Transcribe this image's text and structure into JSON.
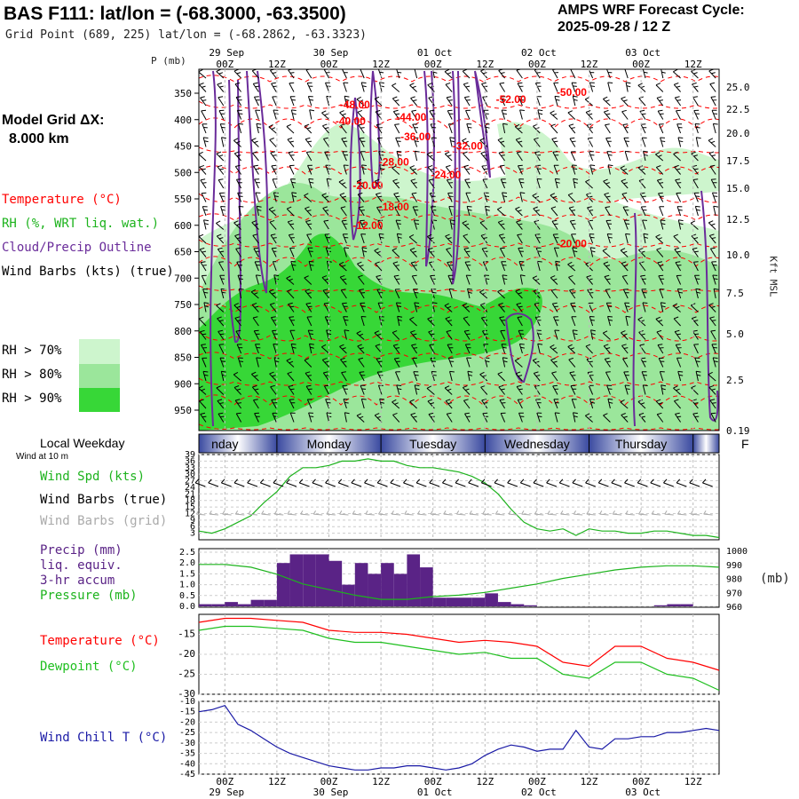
{
  "header": {
    "title": "BAS F111:  lat/lon = (-68.3000, -63.3500)",
    "grid_point": "Grid Point (689, 225) lat/lon = (-68.2862, -63.3323)",
    "forecast_title": "AMPS WRF Forecast Cycle:",
    "forecast_cycle": "2025-09-28 / 12  Z"
  },
  "colors": {
    "rh70": "#cdf5cd",
    "rh80": "#9be69b",
    "rh90": "#37d737",
    "temperature": "#ff0000",
    "cloud": "#6a2c9a",
    "wind_barbs": "#000000",
    "wind_grid": "#aaaaaa",
    "precip": "#5a2386",
    "pressure": "#1db31d",
    "dewpoint": "#1fbf1f",
    "windchill": "#1a1aa6",
    "wind_speed": "#1db31d"
  },
  "side": {
    "model_grid_label": "Model Grid ΔX:",
    "model_grid_value": "8.000 km",
    "legend_temperature": "Temperature (°C)",
    "legend_rh": "RH (%, WRT liq. wat.)",
    "legend_cloud": "Cloud/Precip Outline",
    "legend_wind": "Wind Barbs (kts) (true)",
    "rh70_label": "RH > 70%",
    "rh80_label": "RH > 80%",
    "rh90_label": "RH > 90%",
    "local_weekday": "Local Weekday",
    "wind_at_10m": "Wind at 10 m",
    "wind_spd_label": "Wind Spd (kts)",
    "wind_barbs_true": "Wind Barbs (true)",
    "wind_barbs_grid": "Wind Barbs (grid)",
    "precip_l1": "Precip (mm)",
    "precip_l2": "liq. equiv.",
    "precip_l3": "3-hr accum",
    "pressure_label": "Pressure (mb)",
    "temp_label": "Temperature (°C)",
    "dewpoint_label": "Dewpoint (°C)",
    "windchill_label": "Wind Chill T (°C)",
    "mb_unit": "(mb)",
    "p_axis_title": "P (mb)",
    "kft_axis_title": "Kft MSL"
  },
  "time_axis": {
    "hour_labels": [
      "00Z",
      "12Z",
      "00Z",
      "12Z",
      "00Z",
      "12Z",
      "00Z",
      "12Z",
      "00Z",
      "12Z"
    ],
    "date_labels": [
      "29 Sep",
      "30 Sep",
      "01 Oct",
      "02 Oct",
      "03 Oct"
    ]
  },
  "weekdays": [
    "nday",
    "Monday",
    "Tuesday",
    "Wednesday",
    "Thursday",
    "F"
  ],
  "chart_data": [
    {
      "type": "heatmap",
      "name": "cross-section",
      "x_range_hours": [
        0,
        120
      ],
      "pressure_ticks": [
        "350",
        "400",
        "450",
        "500",
        "550",
        "600",
        "650",
        "700",
        "750",
        "800",
        "850",
        "900",
        "950"
      ],
      "height_ticks": [
        "25.0",
        "22.5",
        "20.0",
        "17.5",
        "15.0",
        "12.5",
        "10.0",
        "7.5",
        "5.0",
        "2.5",
        "0.19"
      ],
      "temperature_labels": [
        {
          "text": "-50.00",
          "t": 86,
          "p": 348
        },
        {
          "text": "-52.00",
          "t": 72,
          "p": 362
        },
        {
          "text": "-48.00",
          "t": 36,
          "p": 372
        },
        {
          "text": "-44.00",
          "t": 49,
          "p": 395
        },
        {
          "text": "-40.00",
          "t": 35,
          "p": 403
        },
        {
          "text": "-36.00",
          "t": 50,
          "p": 432
        },
        {
          "text": "-32.00",
          "t": 62,
          "p": 450
        },
        {
          "text": "-28.00",
          "t": 45,
          "p": 480
        },
        {
          "text": "-24.00",
          "t": 57,
          "p": 505
        },
        {
          "text": "-20.00",
          "t": 39,
          "p": 525
        },
        {
          "text": "-18.00",
          "t": 45,
          "p": 565
        },
        {
          "text": "-12.00",
          "t": 39,
          "p": 600
        },
        {
          "text": "-20.00",
          "t": 86,
          "p": 635
        }
      ]
    },
    {
      "type": "line",
      "name": "wind speed",
      "ylabel": "Wind Spd (kts)",
      "y_ticks": [
        "39",
        "36",
        "33",
        "30",
        "27",
        "24",
        "21",
        "18",
        "15",
        "12",
        "9",
        "6",
        "3"
      ],
      "ylim": [
        0,
        39
      ],
      "x": [
        0,
        3,
        6,
        9,
        12,
        15,
        18,
        21,
        24,
        27,
        30,
        33,
        36,
        39,
        42,
        45,
        48,
        51,
        54,
        57,
        60,
        63,
        66,
        69,
        72,
        75,
        78,
        81,
        84,
        87,
        90,
        93,
        96,
        99,
        102,
        105,
        108,
        111,
        114,
        117,
        120
      ],
      "values": [
        4,
        3,
        5,
        8,
        11,
        17,
        22,
        29,
        33,
        33,
        34,
        36,
        36,
        37,
        36,
        36,
        34,
        33,
        33,
        32,
        31,
        29,
        26,
        21,
        14,
        8,
        5,
        4,
        5,
        2,
        5,
        4,
        4,
        3,
        3,
        4,
        4,
        3,
        2,
        2,
        1
      ]
    },
    {
      "type": "bar",
      "name": "precip 3-hr accum",
      "ylabel": "Precip (mm)",
      "y_ticks": [
        "2.5",
        "2.0",
        "1.5",
        "1.0",
        "0.5",
        "0.0"
      ],
      "ylim": [
        0,
        2.5
      ],
      "bin_start_hours": [
        0,
        3,
        6,
        9,
        12,
        15,
        18,
        21,
        24,
        27,
        30,
        33,
        36,
        39,
        42,
        45,
        48,
        51,
        54,
        57,
        60,
        63,
        66,
        69,
        72,
        75,
        78,
        81,
        84,
        87,
        90,
        93,
        96,
        99,
        102,
        105,
        108,
        111,
        114,
        117
      ],
      "values": [
        0.1,
        0.1,
        0.2,
        0.1,
        0.3,
        0.3,
        2.0,
        2.4,
        2.4,
        2.4,
        2.1,
        1.0,
        2.0,
        1.5,
        2.0,
        1.5,
        2.4,
        1.8,
        0.4,
        0.4,
        0.4,
        0.4,
        0.6,
        0.2,
        0.1,
        0.05,
        0,
        0,
        0,
        0,
        0,
        0,
        0,
        0,
        0,
        0.05,
        0.1,
        0.1,
        0,
        0
      ]
    },
    {
      "type": "line",
      "name": "pressure",
      "ylabel": "Pressure (mb)",
      "y_ticks": [
        "1000",
        "990",
        "980",
        "970",
        "960"
      ],
      "ylim": [
        960,
        1000
      ],
      "x": [
        0,
        6,
        12,
        18,
        24,
        30,
        36,
        42,
        48,
        54,
        60,
        66,
        72,
        78,
        84,
        90,
        96,
        102,
        108,
        114,
        120
      ],
      "values": [
        990,
        990,
        988,
        983,
        976,
        972,
        968,
        965,
        965,
        967,
        968,
        970,
        973,
        976,
        980,
        983,
        986,
        988,
        989,
        989,
        988
      ]
    },
    {
      "type": "line",
      "name": "temperature / dewpoint",
      "y_ticks": [
        "-15",
        "-20",
        "-25",
        "-30"
      ],
      "ylim": [
        -30,
        -10
      ],
      "series": [
        {
          "name": "Temperature (°C)",
          "x": [
            0,
            6,
            12,
            18,
            24,
            30,
            36,
            42,
            48,
            54,
            60,
            66,
            72,
            78,
            84,
            90,
            96,
            102,
            108,
            114,
            120
          ],
          "values": [
            -12,
            -11,
            -11,
            -11.5,
            -12,
            -14,
            -14.5,
            -14.5,
            -15,
            -16,
            -17,
            -16.5,
            -17,
            -18,
            -22,
            -23,
            -18,
            -18,
            -21,
            -22,
            -24
          ]
        },
        {
          "name": "Dewpoint (°C)",
          "x": [
            0,
            6,
            12,
            18,
            24,
            30,
            36,
            42,
            48,
            54,
            60,
            66,
            72,
            78,
            84,
            90,
            96,
            102,
            108,
            114,
            120
          ],
          "values": [
            -14,
            -13,
            -13,
            -13.5,
            -14,
            -16,
            -17,
            -17,
            -18,
            -19,
            -20,
            -19.5,
            -21,
            -21,
            -25,
            -26,
            -22,
            -22,
            -25,
            -26,
            -29
          ]
        }
      ]
    },
    {
      "type": "line",
      "name": "wind chill",
      "ylabel": "Wind Chill T (°C)",
      "y_ticks": [
        "-10",
        "-15",
        "-20",
        "-25",
        "-30",
        "-35",
        "-40",
        "-45"
      ],
      "ylim": [
        -45,
        -10
      ],
      "x": [
        0,
        3,
        6,
        9,
        12,
        15,
        18,
        21,
        24,
        27,
        30,
        33,
        36,
        39,
        42,
        45,
        48,
        51,
        54,
        57,
        60,
        63,
        66,
        69,
        72,
        75,
        78,
        81,
        84,
        87,
        90,
        93,
        96,
        99,
        102,
        105,
        108,
        111,
        114,
        117,
        120
      ],
      "values": [
        -15,
        -14,
        -12,
        -21,
        -24,
        -28,
        -32,
        -35,
        -37,
        -39,
        -41,
        -42,
        -43,
        -43,
        -42,
        -42,
        -41,
        -41,
        -42,
        -43,
        -42,
        -40,
        -36,
        -33,
        -31,
        -32,
        -34,
        -33,
        -33,
        -24,
        -32,
        -33,
        -28,
        -28,
        -27,
        -27,
        -25,
        -25,
        -24,
        -23,
        -24
      ]
    }
  ]
}
